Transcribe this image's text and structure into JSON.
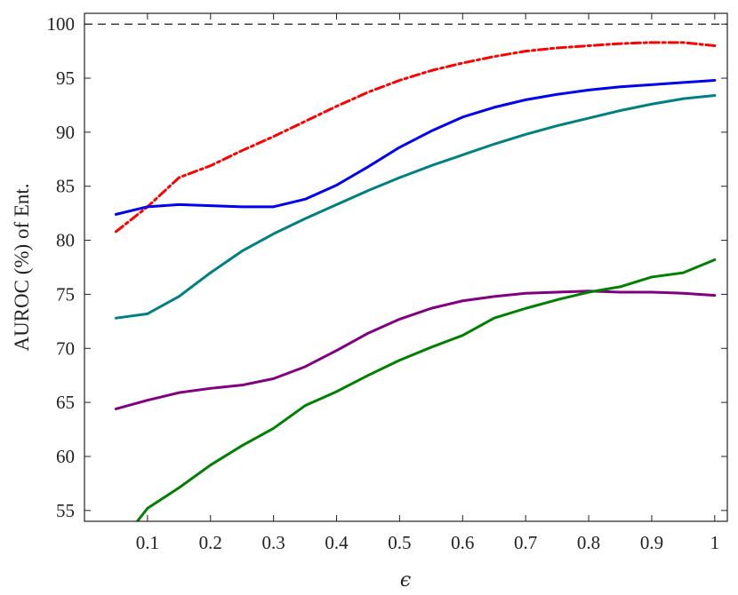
{
  "chart_data": {
    "type": "line",
    "title": "",
    "xlabel": "ϵ",
    "ylabel": "AUROC (%) of Ent.",
    "xlim": [
      0,
      1.02
    ],
    "ylim": [
      54,
      101
    ],
    "grid": false,
    "legend": "none",
    "x_ticks": [
      0.1,
      0.2,
      0.3,
      0.4,
      0.5,
      0.6,
      0.7,
      0.8,
      0.9,
      1
    ],
    "x_tick_labels": [
      "0.1",
      "0.2",
      "0.3",
      "0.4",
      "0.5",
      "0.6",
      "0.7",
      "0.8",
      "0.9",
      "1"
    ],
    "y_ticks": [
      55,
      60,
      65,
      70,
      75,
      80,
      85,
      90,
      95,
      100
    ],
    "y_tick_labels": [
      "55",
      "60",
      "65",
      "70",
      "75",
      "80",
      "85",
      "90",
      "95",
      "100"
    ],
    "reference_line": {
      "y": 100,
      "color": "#000000",
      "style": "dashed"
    },
    "x": [
      0.05,
      0.1,
      0.15,
      0.2,
      0.25,
      0.3,
      0.35,
      0.4,
      0.45,
      0.5,
      0.55,
      0.6,
      0.65,
      0.7,
      0.75,
      0.8,
      0.85,
      0.9,
      0.95,
      1.0
    ],
    "series": [
      {
        "color": "#ff0000",
        "style": "dashdot",
        "values": [
          80.8,
          83.1,
          85.8,
          86.9,
          88.3,
          89.6,
          91.0,
          92.4,
          93.7,
          94.8,
          95.7,
          96.4,
          97.0,
          97.5,
          97.8,
          98.0,
          98.2,
          98.3,
          98.3,
          98.0
        ]
      },
      {
        "color": "#0000ee",
        "style": "solid",
        "values": [
          82.4,
          83.1,
          83.3,
          83.2,
          83.1,
          83.1,
          83.8,
          85.1,
          86.8,
          88.6,
          90.1,
          91.4,
          92.3,
          93.0,
          93.5,
          93.9,
          94.2,
          94.4,
          94.6,
          94.8
        ]
      },
      {
        "color": "#008080",
        "style": "solid",
        "values": [
          72.8,
          73.2,
          74.8,
          77.0,
          79.0,
          80.6,
          82.0,
          83.3,
          84.6,
          85.8,
          86.9,
          87.9,
          88.9,
          89.8,
          90.6,
          91.3,
          92.0,
          92.6,
          93.1,
          93.4
        ]
      },
      {
        "color": "#800080",
        "style": "solid",
        "values": [
          64.4,
          65.2,
          65.9,
          66.3,
          66.6,
          67.2,
          68.3,
          69.8,
          71.4,
          72.7,
          73.7,
          74.4,
          74.8,
          75.1,
          75.2,
          75.3,
          75.2,
          75.2,
          75.1,
          74.9
        ]
      },
      {
        "color": "#008000",
        "style": "solid",
        "values": [
          51.5,
          55.2,
          57.1,
          59.2,
          61.0,
          62.6,
          64.7,
          66.0,
          67.5,
          68.9,
          70.1,
          71.2,
          72.8,
          73.7,
          74.5,
          75.2,
          75.7,
          76.6,
          77.0,
          78.2
        ]
      }
    ]
  }
}
